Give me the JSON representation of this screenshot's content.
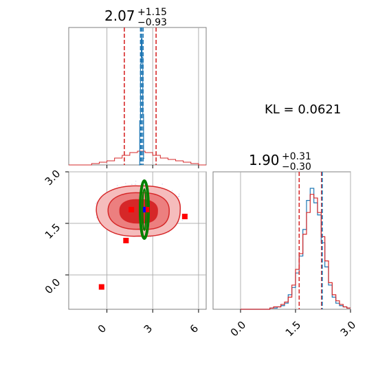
{
  "chart_data": [
    {
      "type": "histogram",
      "panel": "marginal-param-1",
      "title": {
        "median": "2.07",
        "plus": "+1.15",
        "minus": "−0.93"
      },
      "xlim": [
        -2.5,
        6.5
      ],
      "red_quantiles": [
        1.14,
        2.07,
        3.22
      ],
      "blue_quantiles": [
        2.2,
        2.28,
        2.37
      ],
      "xticks": [
        0,
        3,
        6
      ],
      "red_hist": {
        "x": [
          -2.5,
          -2.0,
          -1.5,
          -1.0,
          -0.5,
          0.0,
          0.5,
          1.0,
          1.5,
          2.0,
          2.5,
          3.0,
          3.5,
          4.0,
          4.5,
          5.0,
          5.5,
          6.0,
          6.5
        ],
        "y": [
          0,
          0,
          0,
          0.01,
          0.02,
          0.03,
          0.05,
          0.07,
          0.09,
          0.1,
          0.09,
          0.07,
          0.05,
          0.04,
          0.03,
          0.02,
          0.01,
          0,
          0
        ]
      },
      "blue_hist": {
        "x": [
          2.1,
          2.15,
          2.2,
          2.25,
          2.3,
          2.35,
          2.4,
          2.45
        ],
        "y": [
          0,
          0.35,
          0.8,
          1.0,
          0.85,
          0.4,
          0.05,
          0
        ]
      }
    },
    {
      "type": "scatter",
      "panel": "joint-param-1-param-2",
      "xlim": [
        -2.5,
        6.5
      ],
      "ylim": [
        -1.0,
        3.0
      ],
      "xticks": [
        0,
        3,
        6
      ],
      "yticks": [
        "0.0",
        "1.5",
        "3.0"
      ],
      "red_markers": [
        [
          -0.35,
          -0.35
        ],
        [
          1.25,
          1.0
        ],
        [
          1.6,
          1.9
        ],
        [
          5.1,
          1.7
        ],
        [
          2.6,
          1.9
        ]
      ],
      "blue_marker": [
        2.45,
        1.9
      ],
      "green_ellipse": {
        "center": [
          2.45,
          1.9
        ],
        "sx": 0.2,
        "sy": 0.75
      },
      "contours": [
        {
          "level": "outer",
          "color": "#f5bcbc"
        },
        {
          "level": "middle",
          "color": "#ec7f7f"
        },
        {
          "level": "inner",
          "color": "#d62728"
        }
      ]
    },
    {
      "type": "histogram",
      "panel": "marginal-param-2",
      "title": {
        "median": "1.90",
        "plus": "+0.31",
        "minus": "−0.30"
      },
      "xlim": [
        -0.75,
        3.0
      ],
      "xticks": [
        "0.0",
        "1.5",
        "3.0"
      ],
      "red_quantiles": [
        1.6,
        1.9,
        2.21
      ],
      "blue_quantiles": [
        1.9,
        2.21
      ],
      "bins": [
        0.0,
        0.1,
        0.2,
        0.3,
        0.4,
        0.5,
        0.6,
        0.7,
        0.8,
        0.9,
        1.0,
        1.1,
        1.2,
        1.3,
        1.4,
        1.5,
        1.6,
        1.7,
        1.8,
        1.9,
        2.0,
        2.1,
        2.2,
        2.3,
        2.4,
        2.5,
        2.6,
        2.7,
        2.8,
        2.9,
        3.0
      ],
      "red_y": [
        0,
        0,
        0,
        0,
        0,
        0,
        0,
        0,
        0.01,
        0.02,
        0.02,
        0.04,
        0.06,
        0.1,
        0.2,
        0.33,
        0.46,
        0.62,
        0.8,
        0.95,
        0.92,
        0.8,
        0.6,
        0.4,
        0.22,
        0.12,
        0.07,
        0.04,
        0.02,
        0.01
      ],
      "blue_y": [
        0,
        0,
        0,
        0,
        0,
        0,
        0,
        0,
        0.01,
        0.01,
        0.02,
        0.03,
        0.05,
        0.12,
        0.18,
        0.3,
        0.44,
        0.66,
        0.9,
        1.0,
        0.88,
        0.78,
        0.55,
        0.35,
        0.2,
        0.1,
        0.05,
        0.03,
        0.02,
        0.01
      ]
    }
  ],
  "kl": {
    "label": "KL = 0.0621"
  },
  "colors": {
    "red": "#d62728",
    "blue": "#1f77b4",
    "green": "#008000",
    "grid": "#b0b0b0",
    "marker_red": "#ff0000",
    "marker_blue": "#0000ff"
  }
}
